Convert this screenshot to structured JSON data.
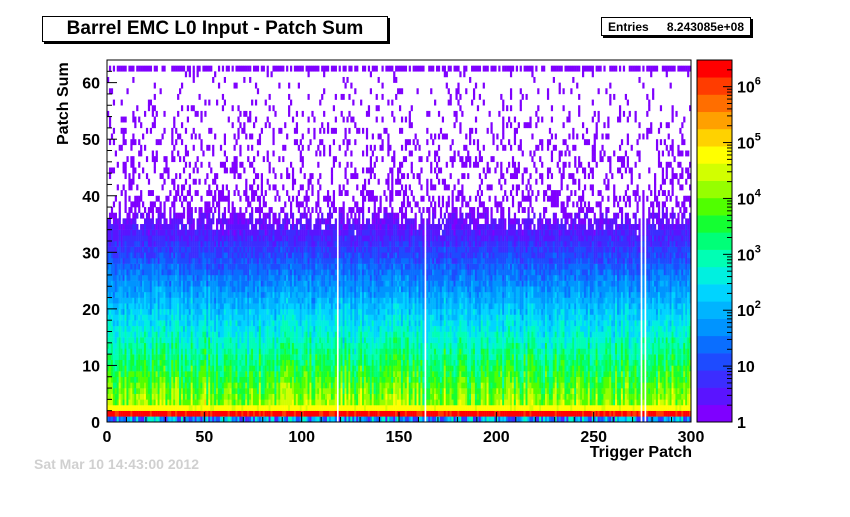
{
  "title": "Barrel EMC L0 Input - Patch Sum",
  "stats": {
    "label": "Entries",
    "value": "8.243085e+08"
  },
  "faint_footer": "Sat Mar 10 14:43:00 2012",
  "chart_data": {
    "type": "heatmap",
    "title": "Barrel EMC L0 Input - Patch Sum",
    "xlabel": "Trigger Patch",
    "ylabel": "Patch Sum",
    "xlim": [
      0,
      300
    ],
    "ylim": [
      0,
      64
    ],
    "x_ticks": [
      0,
      50,
      100,
      150,
      200,
      250,
      300
    ],
    "y_ticks": [
      0,
      10,
      20,
      30,
      40,
      50,
      60
    ],
    "z_scale": "log",
    "z_range": [
      1,
      3000000
    ],
    "z_ticks": [
      {
        "label": "1",
        "value": 1
      },
      {
        "label": "10",
        "value": 10
      },
      {
        "label": "10",
        "exp": "2",
        "value": 100
      },
      {
        "label": "10",
        "exp": "3",
        "value": 1000
      },
      {
        "label": "10",
        "exp": "4",
        "value": 10000
      },
      {
        "label": "10",
        "exp": "5",
        "value": 100000
      },
      {
        "label": "10",
        "exp": "6",
        "value": 1000000
      }
    ],
    "empty_columns": [
      118,
      163,
      274,
      276
    ],
    "palette": [
      "#7f00ff",
      "#5a14ff",
      "#3c2dff",
      "#1e4bff",
      "#0a6eff",
      "#0094ff",
      "#00b4ff",
      "#00d4ff",
      "#00f0e0",
      "#00ffb4",
      "#00ff78",
      "#14ff32",
      "#50ff00",
      "#96ff00",
      "#d2ff00",
      "#ffff00",
      "#ffd200",
      "#ffa000",
      "#ff6e00",
      "#ff3c00",
      "#ff0000"
    ]
  }
}
